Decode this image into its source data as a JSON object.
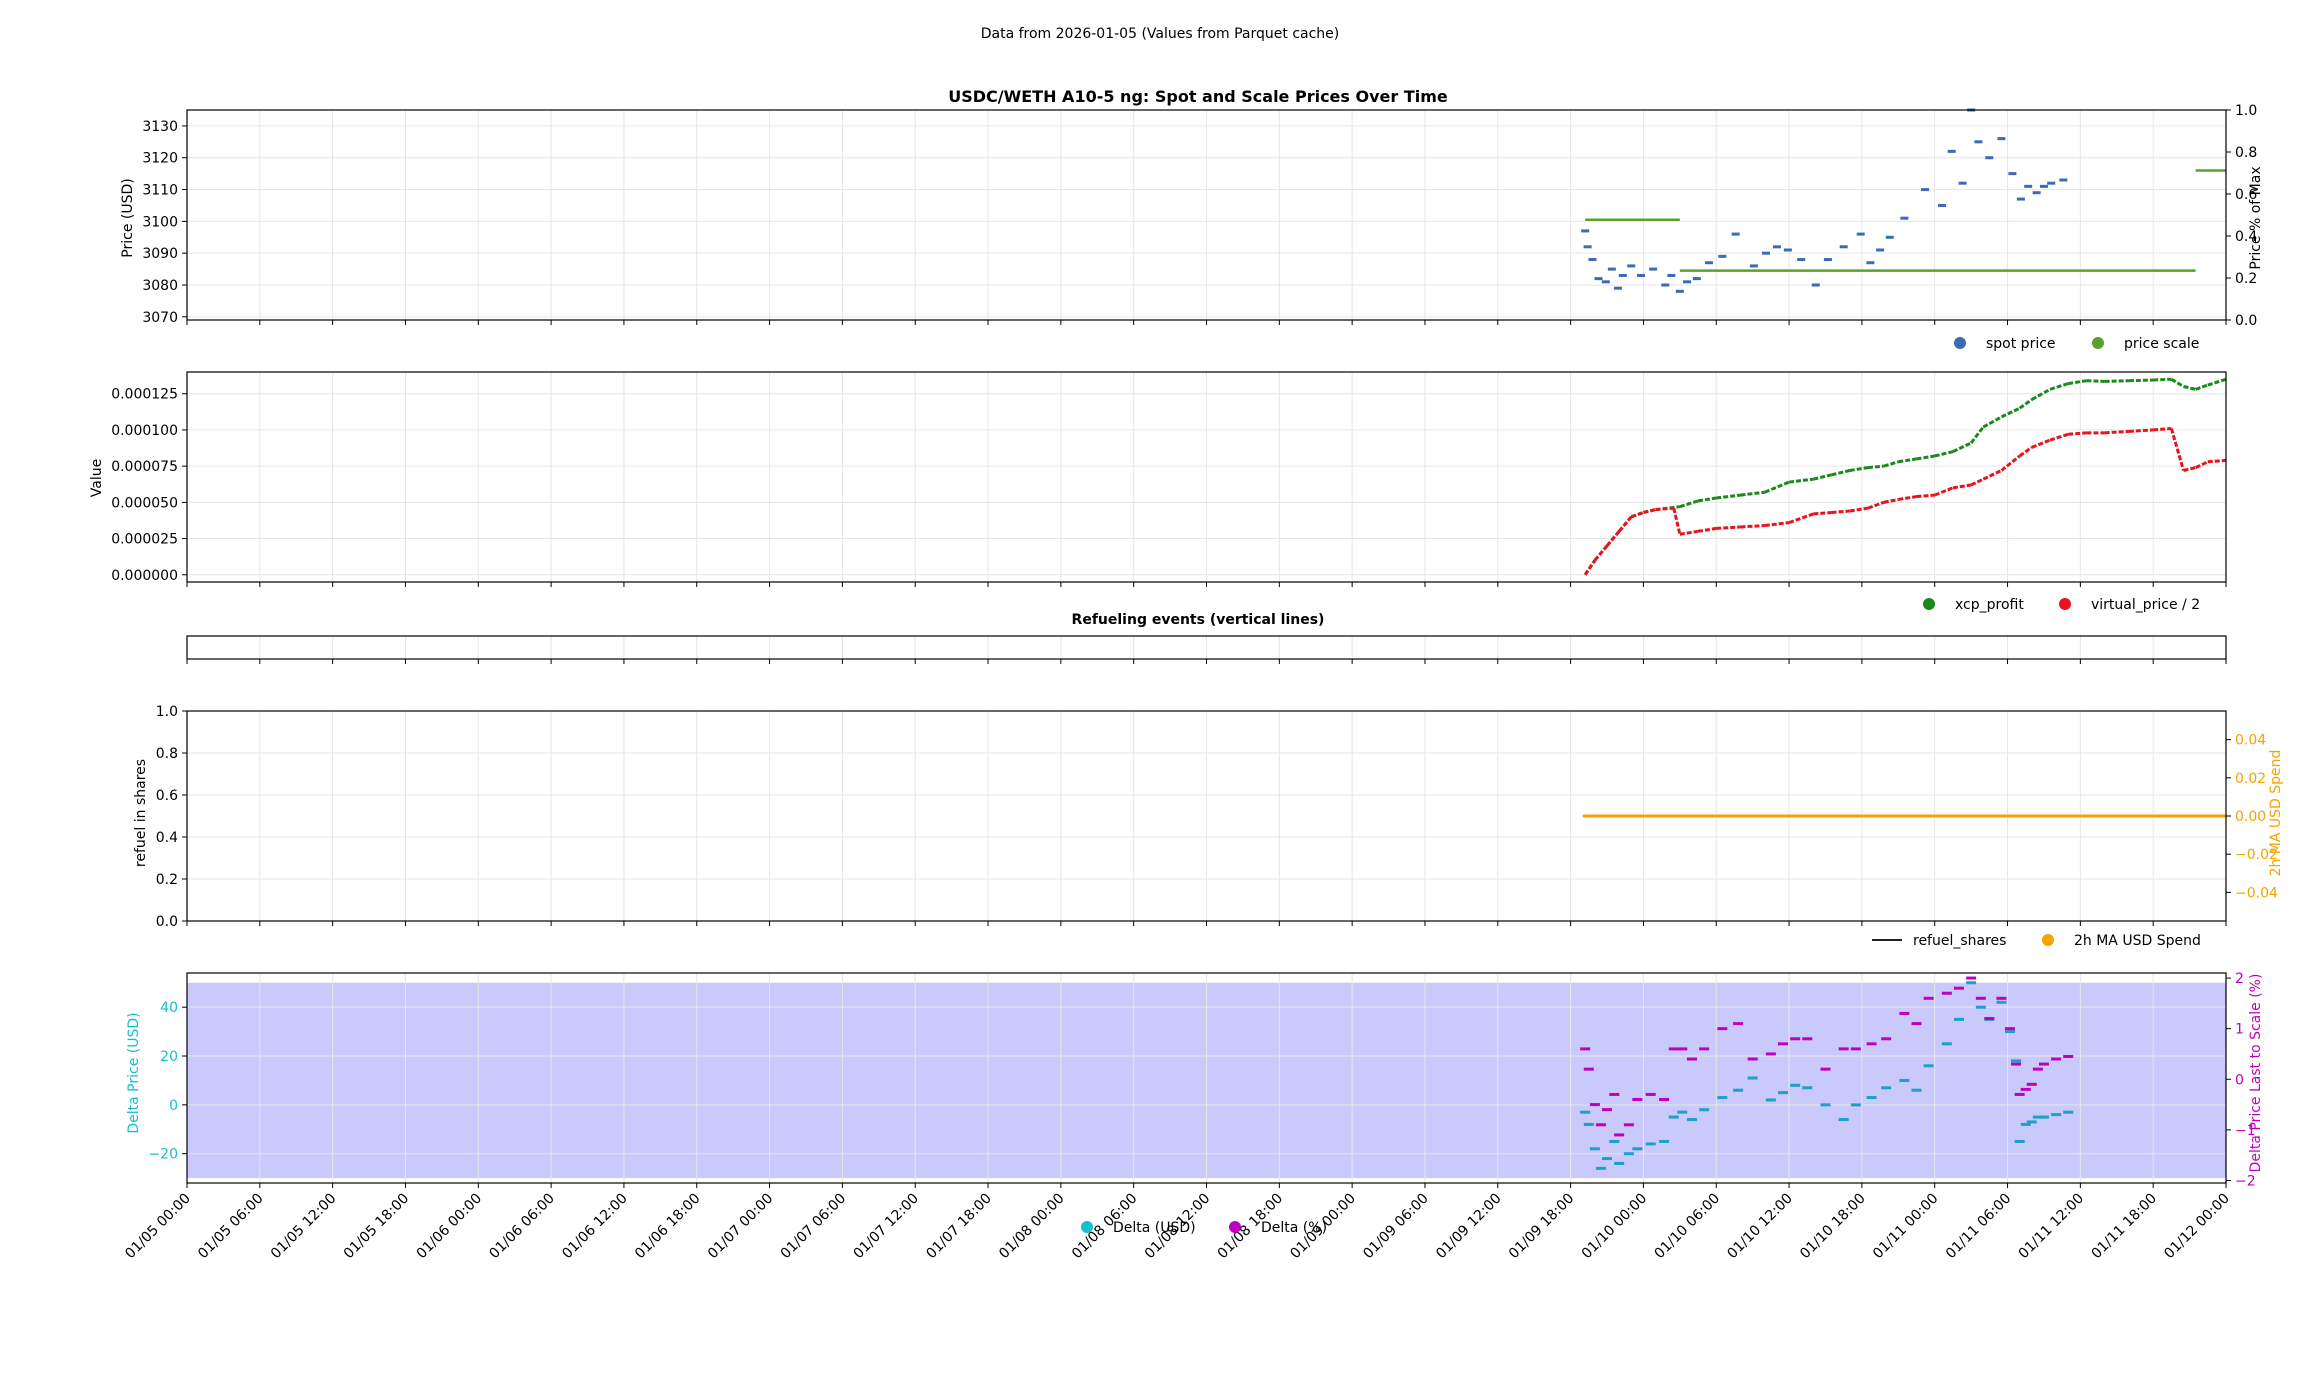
{
  "suptitle": "Data from 2026-01-05 (Values from Parquet cache)",
  "x_tick_labels": [
    "01/05 00:00",
    "01/05 06:00",
    "01/05 12:00",
    "01/05 18:00",
    "01/06 00:00",
    "01/06 06:00",
    "01/06 12:00",
    "01/06 18:00",
    "01/07 00:00",
    "01/07 06:00",
    "01/07 12:00",
    "01/07 18:00",
    "01/08 00:00",
    "01/08 06:00",
    "01/08 12:00",
    "01/08 18:00",
    "01/09 00:00",
    "01/09 06:00",
    "01/09 12:00",
    "01/09 18:00",
    "01/10 00:00",
    "01/10 06:00",
    "01/10 12:00",
    "01/10 18:00",
    "01/11 00:00",
    "01/11 06:00",
    "01/11 12:00",
    "01/11 18:00",
    "01/12 00:00"
  ],
  "colors": {
    "spot": "#3b6bb0",
    "scale": "#5aa02c",
    "xcp": "#1a8a1a",
    "vp": "#e8141c",
    "usd_spend": "#f5a300",
    "refuel_line": "#222222",
    "delta_usd": "#1ea0c8",
    "delta_pct": "#bf00bf",
    "delta_usd_axis": "#17becf",
    "delta_pct_axis": "#bf00bf",
    "band": "#c9c9fb"
  },
  "chart_data": [
    {
      "type": "scatter",
      "title": "USDC/WETH A10-5 ng: Spot and Scale Prices Over Time",
      "ylabel": "Price (USD)",
      "ylim": [
        3069,
        3135
      ],
      "yticks": [
        3070,
        3080,
        3090,
        3100,
        3110,
        3120,
        3130
      ],
      "y2label": "Price % of Max",
      "y2lim": [
        0,
        1
      ],
      "y2ticks": [
        "0.0",
        "0.2",
        "0.4",
        "0.6",
        "0.8",
        "1.0"
      ],
      "xlim_hours": [
        0,
        168
      ],
      "legend": [
        "spot price",
        "price scale"
      ],
      "legend_placement": "below-right",
      "series": [
        {
          "name": "spot price",
          "points": [
            [
              115.2,
              3097
            ],
            [
              115.4,
              3092
            ],
            [
              115.8,
              3088
            ],
            [
              116.3,
              3082
            ],
            [
              116.9,
              3081
            ],
            [
              117.4,
              3085
            ],
            [
              117.9,
              3079
            ],
            [
              118.3,
              3083
            ],
            [
              119.0,
              3086
            ],
            [
              119.8,
              3083
            ],
            [
              120.8,
              3085
            ],
            [
              121.8,
              3080
            ],
            [
              122.3,
              3083
            ],
            [
              123.0,
              3078
            ],
            [
              123.6,
              3081
            ],
            [
              124.4,
              3082
            ],
            [
              125.4,
              3087
            ],
            [
              126.5,
              3089
            ],
            [
              127.6,
              3096
            ],
            [
              129.1,
              3086
            ],
            [
              130.1,
              3090
            ],
            [
              131.0,
              3092
            ],
            [
              131.9,
              3091
            ],
            [
              133.0,
              3088
            ],
            [
              134.2,
              3080
            ],
            [
              135.2,
              3088
            ],
            [
              136.5,
              3092
            ],
            [
              137.9,
              3096
            ],
            [
              138.7,
              3087
            ],
            [
              139.5,
              3091
            ],
            [
              140.3,
              3095
            ],
            [
              141.5,
              3101
            ],
            [
              143.2,
              3110
            ],
            [
              144.6,
              3105
            ],
            [
              145.4,
              3122
            ],
            [
              146.3,
              3112
            ],
            [
              147.0,
              3135
            ],
            [
              147.6,
              3125
            ],
            [
              148.5,
              3120
            ],
            [
              149.5,
              3126
            ],
            [
              150.4,
              3115
            ],
            [
              151.1,
              3107
            ],
            [
              151.7,
              3111
            ],
            [
              152.4,
              3109
            ],
            [
              153.0,
              3111
            ],
            [
              153.6,
              3112
            ],
            [
              154.6,
              3113
            ]
          ]
        },
        {
          "name": "price scale",
          "segments": [
            [
              115.2,
              123.0,
              3100.5
            ],
            [
              123.0,
              165.5,
              3084.5
            ],
            [
              165.5,
              168,
              3116
            ]
          ]
        }
      ]
    },
    {
      "type": "scatter",
      "ylabel": "Value",
      "ylim": [
        -5e-06,
        0.00014
      ],
      "yticks": [
        "0.000000",
        "0.000025",
        "0.000050",
        "0.000075",
        "0.000100",
        "0.000125"
      ],
      "xlim_hours": [
        0,
        168
      ],
      "legend": [
        "xcp_profit",
        "virtual_price / 2"
      ],
      "legend_placement": "below-right",
      "series": [
        {
          "name": "xcp_profit",
          "points": [
            [
              115.2,
              0.0
            ],
            [
              116,
              0.01
            ],
            [
              117,
              0.02
            ],
            [
              118,
              0.03
            ],
            [
              119,
              0.04
            ],
            [
              120,
              0.043
            ],
            [
              121,
              0.045
            ],
            [
              123,
              0.047
            ],
            [
              124.5,
              0.051
            ],
            [
              126,
              0.053
            ],
            [
              128,
              0.055
            ],
            [
              130,
              0.057
            ],
            [
              132,
              0.064
            ],
            [
              134,
              0.066
            ],
            [
              135.5,
              0.069
            ],
            [
              137,
              0.072
            ],
            [
              138.5,
              0.074
            ],
            [
              139.8,
              0.075
            ],
            [
              141,
              0.078
            ],
            [
              142.5,
              0.08
            ],
            [
              144,
              0.082
            ],
            [
              145.5,
              0.085
            ],
            [
              147,
              0.091
            ],
            [
              148,
              0.102
            ],
            [
              149.5,
              0.109
            ],
            [
              151,
              0.115
            ],
            [
              152,
              0.121
            ],
            [
              153.5,
              0.128
            ],
            [
              155,
              0.132
            ],
            [
              156.5,
              0.134
            ],
            [
              158,
              0.1335
            ],
            [
              160,
              0.134
            ],
            [
              162,
              0.1345
            ],
            [
              163.5,
              0.135
            ],
            [
              164.5,
              0.13
            ],
            [
              165.5,
              0.128
            ],
            [
              166.5,
              0.131
            ],
            [
              168,
              0.135
            ]
          ]
        },
        {
          "name": "virtual_price / 2",
          "points": [
            [
              115.2,
              0.0
            ],
            [
              116,
              0.01
            ],
            [
              117,
              0.02
            ],
            [
              118,
              0.03
            ],
            [
              119,
              0.04
            ],
            [
              120,
              0.043
            ],
            [
              121,
              0.045
            ],
            [
              122.5,
              0.046
            ],
            [
              123,
              0.028
            ],
            [
              124.5,
              0.03
            ],
            [
              126,
              0.032
            ],
            [
              128,
              0.033
            ],
            [
              130,
              0.034
            ],
            [
              132,
              0.036
            ],
            [
              134,
              0.042
            ],
            [
              135.5,
              0.043
            ],
            [
              137,
              0.044
            ],
            [
              138.5,
              0.046
            ],
            [
              139.8,
              0.05
            ],
            [
              141,
              0.052
            ],
            [
              142.5,
              0.054
            ],
            [
              144,
              0.055
            ],
            [
              145.5,
              0.06
            ],
            [
              147,
              0.062
            ],
            [
              148,
              0.066
            ],
            [
              149.5,
              0.072
            ],
            [
              151,
              0.082
            ],
            [
              152,
              0.088
            ],
            [
              153.5,
              0.093
            ],
            [
              155,
              0.097
            ],
            [
              156.5,
              0.098
            ],
            [
              158,
              0.098
            ],
            [
              160,
              0.099
            ],
            [
              162,
              0.1
            ],
            [
              163.5,
              0.101
            ],
            [
              164.5,
              0.072
            ],
            [
              165.5,
              0.074
            ],
            [
              166.5,
              0.078
            ],
            [
              168,
              0.079
            ]
          ]
        }
      ]
    },
    {
      "type": "line",
      "title": "Refueling events (vertical lines)",
      "xlim_hours": [
        0,
        168
      ],
      "series": []
    },
    {
      "type": "line",
      "ylabel": "refuel in shares",
      "ylim": [
        0,
        1
      ],
      "yticks": [
        "0.0",
        "0.2",
        "0.4",
        "0.6",
        "0.8",
        "1.0"
      ],
      "y2label": "2h MA USD Spend",
      "y2lim": [
        -0.055,
        0.055
      ],
      "y2ticks": [
        "−0.04",
        "−0.02",
        "0.00",
        "0.02",
        "0.04"
      ],
      "xlim_hours": [
        0,
        168
      ],
      "legend": [
        "refuel_shares",
        "2h MA USD Spend"
      ],
      "legend_placement": "below-right",
      "series": [
        {
          "name": "2h MA USD Spend",
          "axis": "right",
          "x": [
            115.0,
            168.0
          ],
          "y": [
            0.0,
            0.0
          ]
        }
      ]
    },
    {
      "type": "scatter",
      "ylabel": "Delta Price (USD)",
      "ylim": [
        -32,
        54
      ],
      "yticks": [
        "−20",
        "0",
        "20",
        "40"
      ],
      "y2label": "Delta Price Last to Scale (%)",
      "y2lim": [
        -2.05,
        2.1
      ],
      "y2ticks": [
        "−2",
        "−1",
        "0",
        "1",
        "2"
      ],
      "xlim_hours": [
        0,
        168
      ],
      "band": {
        "from": -30,
        "to": 50
      },
      "legend": [
        "Delta (USD)",
        "Delta (%)"
      ],
      "legend_placement": "below-center",
      "series": [
        {
          "name": "Delta (USD)",
          "axis": "left",
          "points": [
            [
              115.2,
              -3
            ],
            [
              115.5,
              -8
            ],
            [
              116,
              -18
            ],
            [
              116.5,
              -26
            ],
            [
              117,
              -22
            ],
            [
              117.6,
              -15
            ],
            [
              118,
              -24
            ],
            [
              118.8,
              -20
            ],
            [
              119.5,
              -18
            ],
            [
              120.6,
              -16
            ],
            [
              121.7,
              -15
            ],
            [
              122.5,
              -5
            ],
            [
              123.2,
              -3
            ],
            [
              124,
              -6
            ],
            [
              125,
              -2
            ],
            [
              126.5,
              3
            ],
            [
              127.8,
              6
            ],
            [
              129,
              11
            ],
            [
              130.5,
              2
            ],
            [
              131.5,
              5
            ],
            [
              132.5,
              8
            ],
            [
              133.5,
              7
            ],
            [
              135,
              0
            ],
            [
              136.5,
              -6
            ],
            [
              137.5,
              0
            ],
            [
              138.8,
              3
            ],
            [
              140,
              7
            ],
            [
              141.5,
              10
            ],
            [
              142.5,
              6
            ],
            [
              143.5,
              16
            ],
            [
              145,
              25
            ],
            [
              146,
              35
            ],
            [
              147,
              50
            ],
            [
              147.8,
              40
            ],
            [
              148.5,
              35
            ],
            [
              149.5,
              42
            ],
            [
              150.2,
              30
            ],
            [
              150.7,
              18
            ],
            [
              151,
              -15
            ],
            [
              151.5,
              -8
            ],
            [
              152,
              -7
            ],
            [
              152.5,
              -5
            ],
            [
              153,
              -5
            ],
            [
              154,
              -4
            ],
            [
              155,
              -3
            ]
          ]
        },
        {
          "name": "Delta (%)",
          "axis": "right",
          "points": [
            [
              115.2,
              0.6
            ],
            [
              115.5,
              0.2
            ],
            [
              116,
              -0.5
            ],
            [
              116.5,
              -0.9
            ],
            [
              117,
              -0.6
            ],
            [
              117.6,
              -0.3
            ],
            [
              118,
              -1.1
            ],
            [
              118.8,
              -0.9
            ],
            [
              119.5,
              -0.4
            ],
            [
              120.6,
              -0.3
            ],
            [
              121.7,
              -0.4
            ],
            [
              122.5,
              0.6
            ],
            [
              123.2,
              0.6
            ],
            [
              124,
              0.4
            ],
            [
              125,
              0.6
            ],
            [
              126.5,
              1.0
            ],
            [
              127.8,
              1.1
            ],
            [
              129,
              0.4
            ],
            [
              130.5,
              0.5
            ],
            [
              131.5,
              0.7
            ],
            [
              132.5,
              0.8
            ],
            [
              133.5,
              0.8
            ],
            [
              135,
              0.2
            ],
            [
              136.5,
              0.6
            ],
            [
              137.5,
              0.6
            ],
            [
              138.8,
              0.7
            ],
            [
              140,
              0.8
            ],
            [
              141.5,
              1.3
            ],
            [
              142.5,
              1.1
            ],
            [
              143.5,
              1.6
            ],
            [
              145,
              1.7
            ],
            [
              146,
              1.8
            ],
            [
              147,
              2.0
            ],
            [
              147.8,
              1.6
            ],
            [
              148.5,
              1.2
            ],
            [
              149.5,
              1.6
            ],
            [
              150.2,
              1.0
            ],
            [
              150.7,
              0.3
            ],
            [
              151,
              -0.3
            ],
            [
              151.5,
              -0.2
            ],
            [
              152,
              -0.1
            ],
            [
              152.5,
              0.2
            ],
            [
              153,
              0.3
            ],
            [
              154,
              0.4
            ],
            [
              155,
              0.45
            ]
          ]
        }
      ]
    }
  ]
}
